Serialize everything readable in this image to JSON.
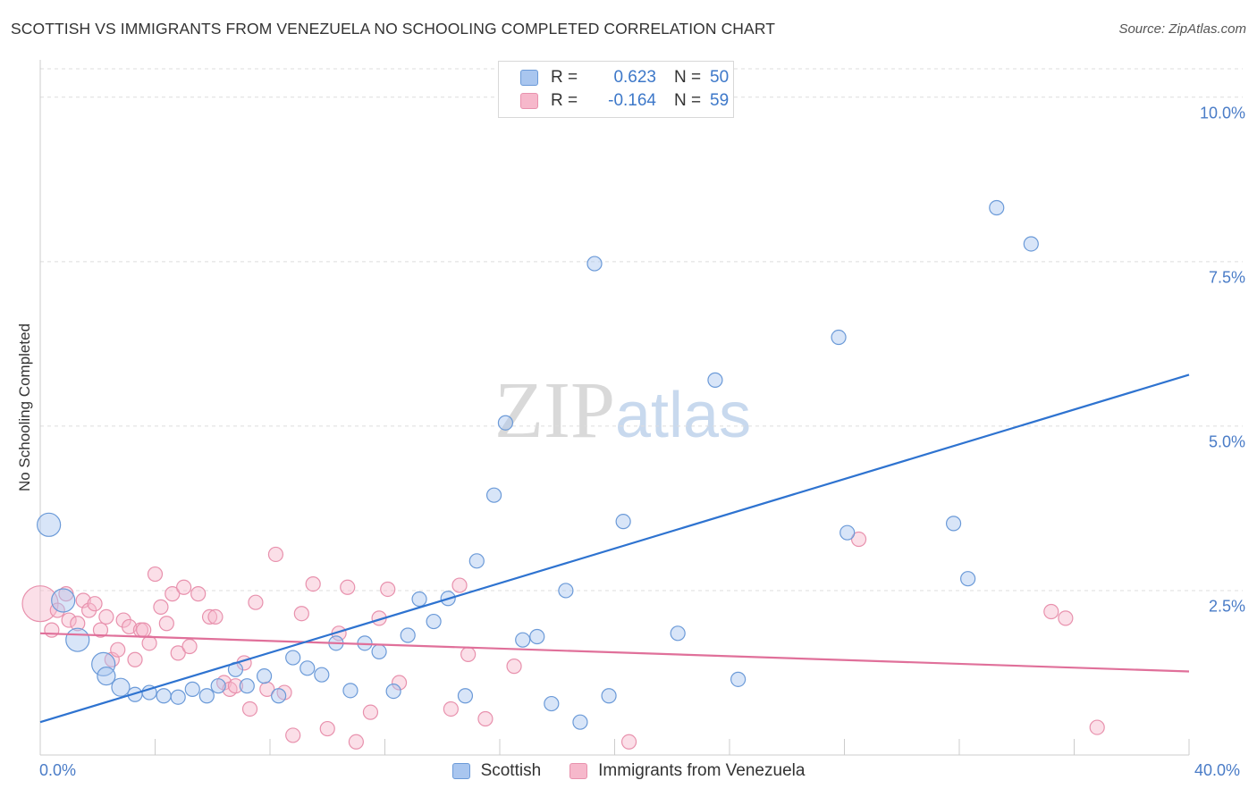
{
  "title": "SCOTTISH VS IMMIGRANTS FROM VENEZUELA NO SCHOOLING COMPLETED CORRELATION CHART",
  "source": "Source: ZipAtlas.com",
  "watermark": {
    "zip": "ZIP",
    "atlas": "atlas"
  },
  "colors": {
    "blue_fill": "#a9c6ef",
    "blue_stroke": "#6b9ad8",
    "blue_line": "#2e73d0",
    "pink_fill": "#f6b8cb",
    "pink_stroke": "#e891ad",
    "pink_line": "#e0709a",
    "grid": "#dddddd",
    "tick_text": "#4a7cc7"
  },
  "legend": {
    "rows": [
      {
        "r_label": "R =",
        "r_value": "0.623",
        "n_label": "N =",
        "n_value": "50"
      },
      {
        "r_label": "R =",
        "r_value": "-0.164",
        "n_label": "N =",
        "n_value": "59"
      }
    ]
  },
  "chart_data": {
    "type": "scatter",
    "title": "SCOTTISH VS IMMIGRANTS FROM VENEZUELA NO SCHOOLING COMPLETED CORRELATION CHART",
    "xlabel": "",
    "ylabel": "No Schooling Completed",
    "xlim": [
      0,
      40
    ],
    "ylim": [
      0,
      10.5
    ],
    "x_tick_labels": [
      "0.0%",
      "40.0%"
    ],
    "y_tick_labels": [
      "2.5%",
      "5.0%",
      "7.5%",
      "10.0%"
    ],
    "y_tick_values": [
      2.5,
      5.0,
      7.5,
      10.0
    ],
    "grid": true,
    "legend_position": "bottom",
    "series": [
      {
        "name": "Scottish",
        "color": "blue",
        "trend": {
          "x": [
            0,
            40
          ],
          "y": [
            0.5,
            5.78
          ]
        },
        "points": [
          {
            "x": 0.3,
            "y": 3.5,
            "s": 3
          },
          {
            "x": 0.8,
            "y": 2.35,
            "s": 3
          },
          {
            "x": 1.3,
            "y": 1.75,
            "s": 3
          },
          {
            "x": 2.2,
            "y": 1.38,
            "s": 3
          },
          {
            "x": 2.3,
            "y": 1.2,
            "s": 2
          },
          {
            "x": 2.8,
            "y": 1.03,
            "s": 2
          },
          {
            "x": 3.3,
            "y": 0.92,
            "s": 1
          },
          {
            "x": 3.8,
            "y": 0.95,
            "s": 1
          },
          {
            "x": 4.3,
            "y": 0.9,
            "s": 1
          },
          {
            "x": 4.8,
            "y": 0.88,
            "s": 1
          },
          {
            "x": 5.3,
            "y": 1.0,
            "s": 1
          },
          {
            "x": 5.8,
            "y": 0.9,
            "s": 1
          },
          {
            "x": 6.2,
            "y": 1.05,
            "s": 1
          },
          {
            "x": 6.8,
            "y": 1.3,
            "s": 1
          },
          {
            "x": 7.2,
            "y": 1.05,
            "s": 1
          },
          {
            "x": 7.8,
            "y": 1.2,
            "s": 1
          },
          {
            "x": 8.3,
            "y": 0.9,
            "s": 1
          },
          {
            "x": 8.8,
            "y": 1.48,
            "s": 1
          },
          {
            "x": 9.3,
            "y": 1.32,
            "s": 1
          },
          {
            "x": 9.8,
            "y": 1.22,
            "s": 1
          },
          {
            "x": 10.3,
            "y": 1.7,
            "s": 1
          },
          {
            "x": 10.8,
            "y": 0.98,
            "s": 1
          },
          {
            "x": 11.3,
            "y": 1.7,
            "s": 1
          },
          {
            "x": 11.8,
            "y": 1.57,
            "s": 1
          },
          {
            "x": 12.3,
            "y": 0.97,
            "s": 1
          },
          {
            "x": 12.8,
            "y": 1.82,
            "s": 1
          },
          {
            "x": 13.2,
            "y": 2.37,
            "s": 1
          },
          {
            "x": 13.7,
            "y": 2.03,
            "s": 1
          },
          {
            "x": 14.2,
            "y": 2.38,
            "s": 1
          },
          {
            "x": 14.8,
            "y": 0.9,
            "s": 1
          },
          {
            "x": 15.2,
            "y": 2.95,
            "s": 1
          },
          {
            "x": 15.8,
            "y": 3.95,
            "s": 1
          },
          {
            "x": 16.2,
            "y": 5.05,
            "s": 1
          },
          {
            "x": 16.8,
            "y": 1.75,
            "s": 1
          },
          {
            "x": 17.3,
            "y": 1.8,
            "s": 1
          },
          {
            "x": 17.8,
            "y": 0.78,
            "s": 1
          },
          {
            "x": 18.3,
            "y": 2.5,
            "s": 1
          },
          {
            "x": 18.8,
            "y": 0.5,
            "s": 1
          },
          {
            "x": 19.3,
            "y": 7.47,
            "s": 1
          },
          {
            "x": 19.8,
            "y": 0.9,
            "s": 1
          },
          {
            "x": 20.3,
            "y": 3.55,
            "s": 1
          },
          {
            "x": 22.2,
            "y": 1.85,
            "s": 1
          },
          {
            "x": 23.5,
            "y": 5.7,
            "s": 1
          },
          {
            "x": 24.3,
            "y": 1.15,
            "s": 1
          },
          {
            "x": 27.8,
            "y": 6.35,
            "s": 1
          },
          {
            "x": 28.1,
            "y": 3.38,
            "s": 1
          },
          {
            "x": 31.8,
            "y": 3.52,
            "s": 1
          },
          {
            "x": 32.3,
            "y": 2.68,
            "s": 1
          },
          {
            "x": 33.3,
            "y": 8.32,
            "s": 1
          },
          {
            "x": 34.5,
            "y": 7.77,
            "s": 1
          }
        ]
      },
      {
        "name": "Immigrants from Venezuela",
        "color": "pink",
        "trend": {
          "x": [
            0,
            40
          ],
          "y": [
            1.85,
            1.27
          ]
        },
        "points": [
          {
            "x": 0.0,
            "y": 2.3,
            "s": 4
          },
          {
            "x": 0.4,
            "y": 1.9,
            "s": 1
          },
          {
            "x": 0.6,
            "y": 2.2,
            "s": 1
          },
          {
            "x": 0.9,
            "y": 2.45,
            "s": 1
          },
          {
            "x": 1.0,
            "y": 2.05,
            "s": 1
          },
          {
            "x": 1.3,
            "y": 2.0,
            "s": 1
          },
          {
            "x": 1.5,
            "y": 2.35,
            "s": 1
          },
          {
            "x": 1.7,
            "y": 2.2,
            "s": 1
          },
          {
            "x": 1.9,
            "y": 2.3,
            "s": 1
          },
          {
            "x": 2.1,
            "y": 1.9,
            "s": 1
          },
          {
            "x": 2.3,
            "y": 2.1,
            "s": 1
          },
          {
            "x": 2.5,
            "y": 1.45,
            "s": 1
          },
          {
            "x": 2.7,
            "y": 1.6,
            "s": 1
          },
          {
            "x": 2.9,
            "y": 2.05,
            "s": 1
          },
          {
            "x": 3.1,
            "y": 1.95,
            "s": 1
          },
          {
            "x": 3.3,
            "y": 1.45,
            "s": 1
          },
          {
            "x": 3.5,
            "y": 1.9,
            "s": 1
          },
          {
            "x": 3.6,
            "y": 1.9,
            "s": 1
          },
          {
            "x": 3.8,
            "y": 1.7,
            "s": 1
          },
          {
            "x": 4.0,
            "y": 2.75,
            "s": 1
          },
          {
            "x": 4.2,
            "y": 2.25,
            "s": 1
          },
          {
            "x": 4.4,
            "y": 2.0,
            "s": 1
          },
          {
            "x": 4.6,
            "y": 2.45,
            "s": 1
          },
          {
            "x": 4.8,
            "y": 1.55,
            "s": 1
          },
          {
            "x": 5.0,
            "y": 2.55,
            "s": 1
          },
          {
            "x": 5.2,
            "y": 1.65,
            "s": 1
          },
          {
            "x": 5.5,
            "y": 2.45,
            "s": 1
          },
          {
            "x": 5.9,
            "y": 2.1,
            "s": 1
          },
          {
            "x": 6.1,
            "y": 2.1,
            "s": 1
          },
          {
            "x": 6.4,
            "y": 1.1,
            "s": 1
          },
          {
            "x": 6.6,
            "y": 1.0,
            "s": 1
          },
          {
            "x": 6.8,
            "y": 1.05,
            "s": 1
          },
          {
            "x": 7.1,
            "y": 1.4,
            "s": 1
          },
          {
            "x": 7.3,
            "y": 0.7,
            "s": 1
          },
          {
            "x": 7.5,
            "y": 2.32,
            "s": 1
          },
          {
            "x": 7.9,
            "y": 1.0,
            "s": 1
          },
          {
            "x": 8.2,
            "y": 3.05,
            "s": 1
          },
          {
            "x": 8.5,
            "y": 0.95,
            "s": 1
          },
          {
            "x": 8.8,
            "y": 0.3,
            "s": 1
          },
          {
            "x": 9.1,
            "y": 2.15,
            "s": 1
          },
          {
            "x": 9.5,
            "y": 2.6,
            "s": 1
          },
          {
            "x": 10.0,
            "y": 0.4,
            "s": 1
          },
          {
            "x": 10.4,
            "y": 1.85,
            "s": 1
          },
          {
            "x": 10.7,
            "y": 2.55,
            "s": 1
          },
          {
            "x": 11.0,
            "y": 0.2,
            "s": 1
          },
          {
            "x": 11.5,
            "y": 0.65,
            "s": 1
          },
          {
            "x": 11.8,
            "y": 2.08,
            "s": 1
          },
          {
            "x": 12.1,
            "y": 2.52,
            "s": 1
          },
          {
            "x": 12.5,
            "y": 1.1,
            "s": 1
          },
          {
            "x": 14.3,
            "y": 0.7,
            "s": 1
          },
          {
            "x": 14.6,
            "y": 2.58,
            "s": 1
          },
          {
            "x": 14.9,
            "y": 1.53,
            "s": 1
          },
          {
            "x": 15.5,
            "y": 0.55,
            "s": 1
          },
          {
            "x": 16.5,
            "y": 1.35,
            "s": 1
          },
          {
            "x": 20.5,
            "y": 0.2,
            "s": 1
          },
          {
            "x": 28.5,
            "y": 3.28,
            "s": 1
          },
          {
            "x": 35.2,
            "y": 2.18,
            "s": 1
          },
          {
            "x": 35.7,
            "y": 2.08,
            "s": 1
          },
          {
            "x": 36.8,
            "y": 0.42,
            "s": 1
          }
        ]
      }
    ]
  }
}
